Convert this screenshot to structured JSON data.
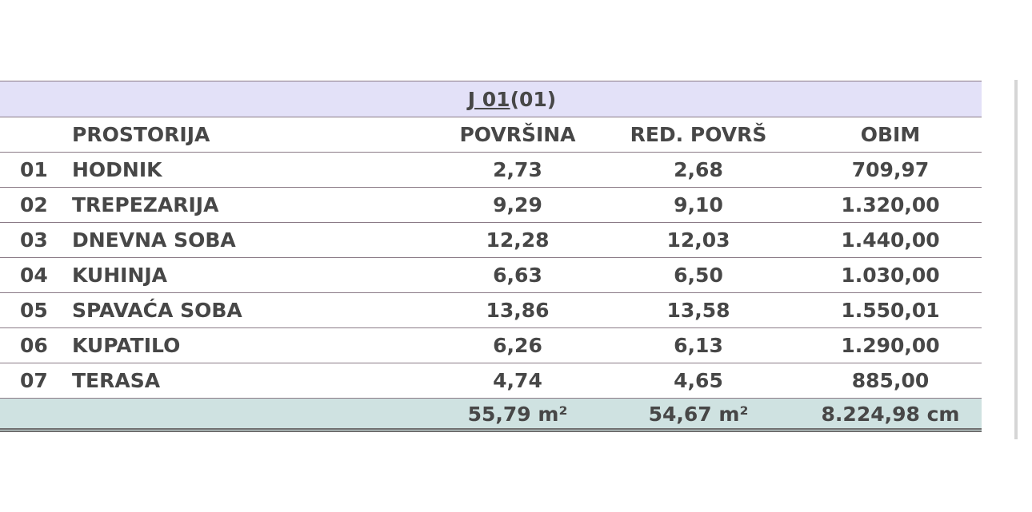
{
  "table": {
    "title": "J 01",
    "title_suffix": "(01)",
    "header": [
      "PROSTORIJA",
      "POVRŠINA",
      "RED. POVRŠ",
      "OBIM"
    ],
    "rows": [
      [
        "01",
        "HODNIK",
        "2,73",
        "2,68",
        "709,97"
      ],
      [
        "02",
        "TREPEZARIJA",
        "9,29",
        "9,10",
        "1.320,00"
      ],
      [
        "03",
        "DNEVNA SOBA",
        "12,28",
        "12,03",
        "1.440,00"
      ],
      [
        "04",
        "KUHINJA",
        "6,63",
        "6,50",
        "1.030,00"
      ],
      [
        "05",
        "SPAVAĆA SOBA",
        "13,86",
        "13,58",
        "1.550,01"
      ],
      [
        "06",
        "KUPATILO",
        "6,26",
        "6,13",
        "1.290,00"
      ],
      [
        "07",
        "TERASA",
        "4,74",
        "4,65",
        "885,00"
      ]
    ],
    "totals": [
      "55,79 m²",
      "54,67 m²",
      "8.224,98 cm"
    ]
  }
}
